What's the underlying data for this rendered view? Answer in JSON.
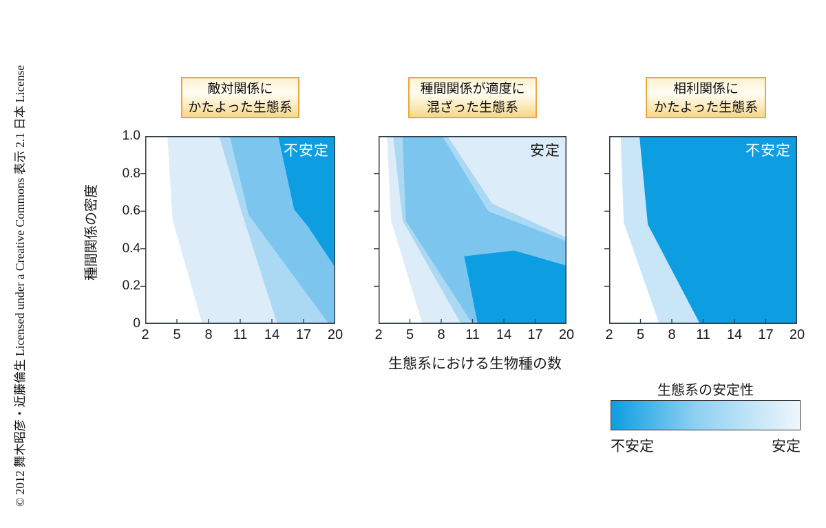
{
  "copyright_vertical": "© 2012 舞木昭彦・近藤倫生 Licensed under a Creative Commons 表示 2.1 日本 License",
  "chart_data": {
    "type": "heatmap",
    "subtype": "filled_contour_small_multiples",
    "x": {
      "label": "生態系における生物種の数",
      "range": [
        2,
        20
      ],
      "ticks": [
        2,
        5,
        8,
        11,
        14,
        17,
        20
      ],
      "tick_labels": [
        "2",
        "5",
        "8",
        "11",
        "14",
        "17",
        "20"
      ]
    },
    "y": {
      "label": "種間関係の密度",
      "range": [
        0,
        1
      ],
      "ticks": [
        1,
        0.8,
        0.6,
        0.4,
        0.2,
        0
      ],
      "tick_labels": [
        "1.0",
        "0.8",
        "0.6",
        "0.4",
        "0.2",
        "0"
      ]
    },
    "colorscale": {
      "title": "生態系の安定性",
      "unstable_label": "不安定",
      "stable_label": "安定",
      "unstable_color": "#0d9de1",
      "mid_color": "#8fd0f2",
      "stable_color": "#eef6fd"
    },
    "frame_color": "#2e3d4e",
    "panels": [
      {
        "title_lines": [
          "敵対関係に",
          "かたよった生態系"
        ],
        "region_label": {
          "text": "不安定",
          "color": "#ffffff"
        },
        "bands": [
          {
            "level": "stability-1-pale",
            "color": "#dcedf9",
            "points": [
              [
                4.1,
                1
              ],
              [
                4.6,
                0.55
              ],
              [
                7.4,
                0
              ],
              [
                20,
                0
              ],
              [
                20,
                1
              ]
            ]
          },
          {
            "level": "stability-2-light",
            "color": "#abd8f3",
            "points": [
              [
                9,
                1
              ],
              [
                11,
                0.62
              ],
              [
                14.5,
                0
              ],
              [
                20,
                0
              ],
              [
                20,
                1
              ]
            ]
          },
          {
            "level": "stability-3-medium",
            "color": "#7cc5ee",
            "points": [
              [
                10,
                1
              ],
              [
                11.8,
                0.58
              ],
              [
                19.4,
                0
              ],
              [
                20,
                0
              ],
              [
                20,
                1
              ]
            ]
          },
          {
            "level": "stability-4-dark",
            "color": "#0d9de1",
            "points": [
              [
                14.6,
                1
              ],
              [
                16.1,
                0.61
              ],
              [
                17.4,
                0.52
              ],
              [
                20,
                0.3
              ],
              [
                20,
                1
              ]
            ]
          }
        ]
      },
      {
        "title_lines": [
          "種間関係が適度に",
          "混ざった生態系"
        ],
        "region_label": {
          "text": "安定",
          "color": "#1a1a1a"
        },
        "bands": [
          {
            "level": "stability-1-pale",
            "color": "#dcedf9",
            "points": [
              [
                2.8,
                1
              ],
              [
                3.2,
                0.55
              ],
              [
                6.2,
                0
              ],
              [
                20,
                0
              ],
              [
                20,
                1
              ]
            ]
          },
          {
            "level": "stability-2-light",
            "color": "#abd8f3",
            "points": [
              [
                3.4,
                1
              ],
              [
                8.6,
                1
              ],
              [
                12.9,
                0.64
              ],
              [
                20,
                0.46
              ],
              [
                20,
                0
              ],
              [
                9.9,
                0
              ],
              [
                4.3,
                0.55
              ]
            ]
          },
          {
            "level": "stability-3-medium",
            "color": "#7cc5ee",
            "points": [
              [
                4.3,
                1
              ],
              [
                8.1,
                1
              ],
              [
                12.5,
                0.6
              ],
              [
                20,
                0.44
              ],
              [
                20,
                0
              ],
              [
                11,
                0
              ],
              [
                4.6,
                0.55
              ]
            ]
          },
          {
            "level": "stability-4-dark",
            "color": "#0d9de1",
            "points": [
              [
                11.5,
                0
              ],
              [
                10.2,
                0.36
              ],
              [
                15,
                0.39
              ],
              [
                20,
                0.31
              ],
              [
                20,
                0
              ]
            ]
          }
        ]
      },
      {
        "title_lines": [
          "相利関係に",
          "かたよった生態系"
        ],
        "region_label": {
          "text": "不安定",
          "color": "#ffffff"
        },
        "bands": [
          {
            "level": "stability-2-light",
            "color": "#c9e6f8",
            "points": [
              [
                3.1,
                1
              ],
              [
                3.4,
                0.54
              ],
              [
                6.8,
                0
              ],
              [
                20,
                0
              ],
              [
                20,
                1
              ]
            ]
          },
          {
            "level": "stability-4-dark",
            "color": "#0d9de1",
            "points": [
              [
                4.9,
                1
              ],
              [
                5.7,
                0.53
              ],
              [
                10.7,
                0
              ],
              [
                20,
                0
              ],
              [
                20,
                1
              ]
            ]
          }
        ]
      }
    ]
  }
}
